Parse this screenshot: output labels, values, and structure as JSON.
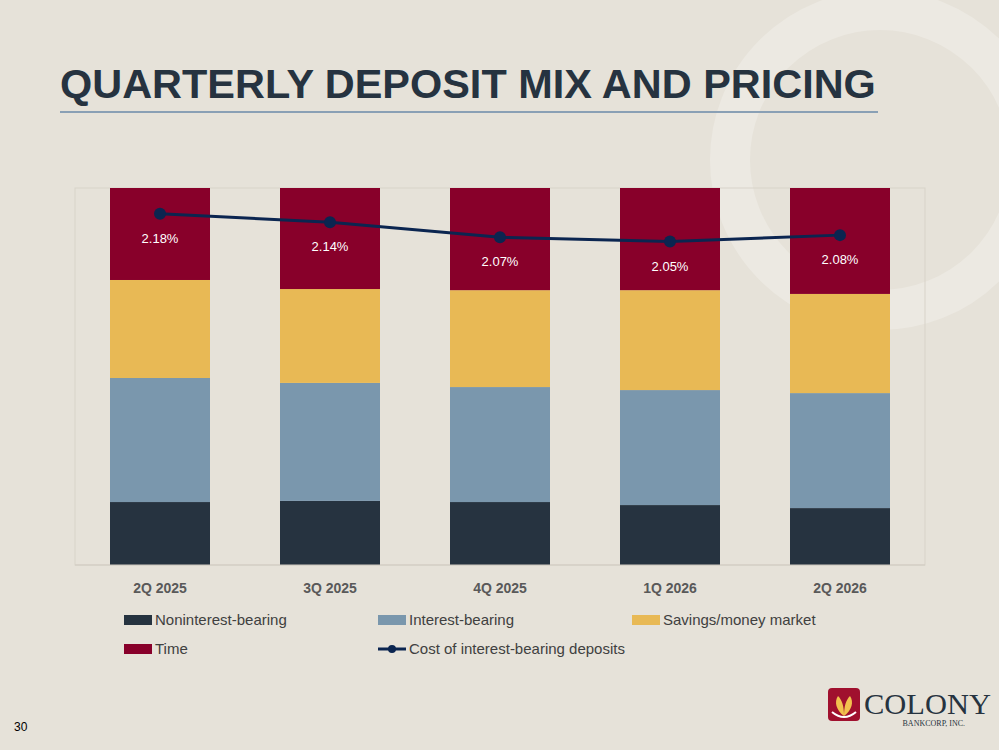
{
  "chart_data": {
    "type": "bar",
    "stacked": true,
    "title": "QUARTERLY DEPOSIT MIX AND PRICING",
    "annotations": [
      "30",
      "COLONY",
      "BANKCORP, INC."
    ],
    "categories": [
      "2Q 2025",
      "3Q 2025",
      "4Q 2025",
      "1Q 2026",
      "2Q 2026"
    ],
    "ylim": [
      0,
      100
    ],
    "y2lim": [
      0.54,
      2.3
    ],
    "tick_labels": "x",
    "legend": "bottom",
    "series": [
      {
        "name": "Noninterest-bearing",
        "color": "#263340",
        "values": [
          16.7,
          17.0,
          16.7,
          15.9,
          15.1
        ]
      },
      {
        "name": "Interest-bearing",
        "color": "#7a97ad",
        "values": [
          32.9,
          31.3,
          30.5,
          30.5,
          30.5
        ]
      },
      {
        "name": "Savings/money market",
        "color": "#e8b955",
        "values": [
          26.0,
          24.9,
          25.7,
          26.5,
          26.3
        ]
      },
      {
        "name": "Time",
        "color": "#88002a",
        "values": [
          24.4,
          26.8,
          27.1,
          27.1,
          28.1
        ]
      },
      {
        "name": "Cost of interest-bearing deposits",
        "type": "line",
        "axis": "y2",
        "color": "#0b2550",
        "marker": "circle",
        "line_style": "solid",
        "data_labels": true,
        "values": [
          2.18,
          2.14,
          2.07,
          2.05,
          2.08
        ],
        "value_labels": [
          "2.18%",
          "2.14%",
          "2.07%",
          "2.05%",
          "2.08%"
        ]
      }
    ]
  }
}
